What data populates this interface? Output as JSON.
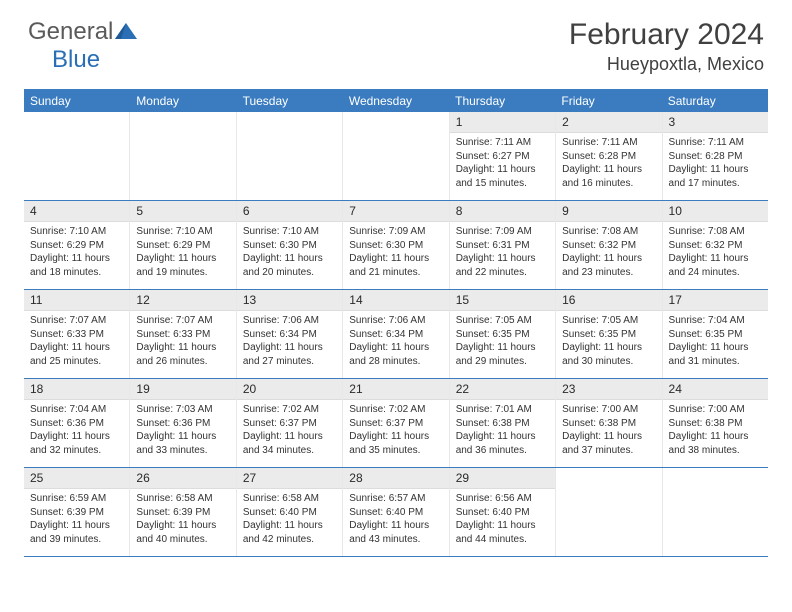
{
  "logo": {
    "text_general": "General",
    "text_blue": "Blue"
  },
  "header": {
    "month_title": "February 2024",
    "location": "Hueypoxtla, Mexico"
  },
  "colors": {
    "brand_blue": "#3a7cbf",
    "header_gray": "#ebebeb",
    "text": "#333333"
  },
  "weekdays": [
    "Sunday",
    "Monday",
    "Tuesday",
    "Wednesday",
    "Thursday",
    "Friday",
    "Saturday"
  ],
  "weeks": [
    [
      {
        "empty": true
      },
      {
        "empty": true
      },
      {
        "empty": true
      },
      {
        "empty": true
      },
      {
        "num": "1",
        "sunrise": "Sunrise: 7:11 AM",
        "sunset": "Sunset: 6:27 PM",
        "daylight1": "Daylight: 11 hours",
        "daylight2": "and 15 minutes."
      },
      {
        "num": "2",
        "sunrise": "Sunrise: 7:11 AM",
        "sunset": "Sunset: 6:28 PM",
        "daylight1": "Daylight: 11 hours",
        "daylight2": "and 16 minutes."
      },
      {
        "num": "3",
        "sunrise": "Sunrise: 7:11 AM",
        "sunset": "Sunset: 6:28 PM",
        "daylight1": "Daylight: 11 hours",
        "daylight2": "and 17 minutes."
      }
    ],
    [
      {
        "num": "4",
        "sunrise": "Sunrise: 7:10 AM",
        "sunset": "Sunset: 6:29 PM",
        "daylight1": "Daylight: 11 hours",
        "daylight2": "and 18 minutes."
      },
      {
        "num": "5",
        "sunrise": "Sunrise: 7:10 AM",
        "sunset": "Sunset: 6:29 PM",
        "daylight1": "Daylight: 11 hours",
        "daylight2": "and 19 minutes."
      },
      {
        "num": "6",
        "sunrise": "Sunrise: 7:10 AM",
        "sunset": "Sunset: 6:30 PM",
        "daylight1": "Daylight: 11 hours",
        "daylight2": "and 20 minutes."
      },
      {
        "num": "7",
        "sunrise": "Sunrise: 7:09 AM",
        "sunset": "Sunset: 6:30 PM",
        "daylight1": "Daylight: 11 hours",
        "daylight2": "and 21 minutes."
      },
      {
        "num": "8",
        "sunrise": "Sunrise: 7:09 AM",
        "sunset": "Sunset: 6:31 PM",
        "daylight1": "Daylight: 11 hours",
        "daylight2": "and 22 minutes."
      },
      {
        "num": "9",
        "sunrise": "Sunrise: 7:08 AM",
        "sunset": "Sunset: 6:32 PM",
        "daylight1": "Daylight: 11 hours",
        "daylight2": "and 23 minutes."
      },
      {
        "num": "10",
        "sunrise": "Sunrise: 7:08 AM",
        "sunset": "Sunset: 6:32 PM",
        "daylight1": "Daylight: 11 hours",
        "daylight2": "and 24 minutes."
      }
    ],
    [
      {
        "num": "11",
        "sunrise": "Sunrise: 7:07 AM",
        "sunset": "Sunset: 6:33 PM",
        "daylight1": "Daylight: 11 hours",
        "daylight2": "and 25 minutes."
      },
      {
        "num": "12",
        "sunrise": "Sunrise: 7:07 AM",
        "sunset": "Sunset: 6:33 PM",
        "daylight1": "Daylight: 11 hours",
        "daylight2": "and 26 minutes."
      },
      {
        "num": "13",
        "sunrise": "Sunrise: 7:06 AM",
        "sunset": "Sunset: 6:34 PM",
        "daylight1": "Daylight: 11 hours",
        "daylight2": "and 27 minutes."
      },
      {
        "num": "14",
        "sunrise": "Sunrise: 7:06 AM",
        "sunset": "Sunset: 6:34 PM",
        "daylight1": "Daylight: 11 hours",
        "daylight2": "and 28 minutes."
      },
      {
        "num": "15",
        "sunrise": "Sunrise: 7:05 AM",
        "sunset": "Sunset: 6:35 PM",
        "daylight1": "Daylight: 11 hours",
        "daylight2": "and 29 minutes."
      },
      {
        "num": "16",
        "sunrise": "Sunrise: 7:05 AM",
        "sunset": "Sunset: 6:35 PM",
        "daylight1": "Daylight: 11 hours",
        "daylight2": "and 30 minutes."
      },
      {
        "num": "17",
        "sunrise": "Sunrise: 7:04 AM",
        "sunset": "Sunset: 6:35 PM",
        "daylight1": "Daylight: 11 hours",
        "daylight2": "and 31 minutes."
      }
    ],
    [
      {
        "num": "18",
        "sunrise": "Sunrise: 7:04 AM",
        "sunset": "Sunset: 6:36 PM",
        "daylight1": "Daylight: 11 hours",
        "daylight2": "and 32 minutes."
      },
      {
        "num": "19",
        "sunrise": "Sunrise: 7:03 AM",
        "sunset": "Sunset: 6:36 PM",
        "daylight1": "Daylight: 11 hours",
        "daylight2": "and 33 minutes."
      },
      {
        "num": "20",
        "sunrise": "Sunrise: 7:02 AM",
        "sunset": "Sunset: 6:37 PM",
        "daylight1": "Daylight: 11 hours",
        "daylight2": "and 34 minutes."
      },
      {
        "num": "21",
        "sunrise": "Sunrise: 7:02 AM",
        "sunset": "Sunset: 6:37 PM",
        "daylight1": "Daylight: 11 hours",
        "daylight2": "and 35 minutes."
      },
      {
        "num": "22",
        "sunrise": "Sunrise: 7:01 AM",
        "sunset": "Sunset: 6:38 PM",
        "daylight1": "Daylight: 11 hours",
        "daylight2": "and 36 minutes."
      },
      {
        "num": "23",
        "sunrise": "Sunrise: 7:00 AM",
        "sunset": "Sunset: 6:38 PM",
        "daylight1": "Daylight: 11 hours",
        "daylight2": "and 37 minutes."
      },
      {
        "num": "24",
        "sunrise": "Sunrise: 7:00 AM",
        "sunset": "Sunset: 6:38 PM",
        "daylight1": "Daylight: 11 hours",
        "daylight2": "and 38 minutes."
      }
    ],
    [
      {
        "num": "25",
        "sunrise": "Sunrise: 6:59 AM",
        "sunset": "Sunset: 6:39 PM",
        "daylight1": "Daylight: 11 hours",
        "daylight2": "and 39 minutes."
      },
      {
        "num": "26",
        "sunrise": "Sunrise: 6:58 AM",
        "sunset": "Sunset: 6:39 PM",
        "daylight1": "Daylight: 11 hours",
        "daylight2": "and 40 minutes."
      },
      {
        "num": "27",
        "sunrise": "Sunrise: 6:58 AM",
        "sunset": "Sunset: 6:40 PM",
        "daylight1": "Daylight: 11 hours",
        "daylight2": "and 42 minutes."
      },
      {
        "num": "28",
        "sunrise": "Sunrise: 6:57 AM",
        "sunset": "Sunset: 6:40 PM",
        "daylight1": "Daylight: 11 hours",
        "daylight2": "and 43 minutes."
      },
      {
        "num": "29",
        "sunrise": "Sunrise: 6:56 AM",
        "sunset": "Sunset: 6:40 PM",
        "daylight1": "Daylight: 11 hours",
        "daylight2": "and 44 minutes."
      },
      {
        "empty": true
      },
      {
        "empty": true
      }
    ]
  ]
}
